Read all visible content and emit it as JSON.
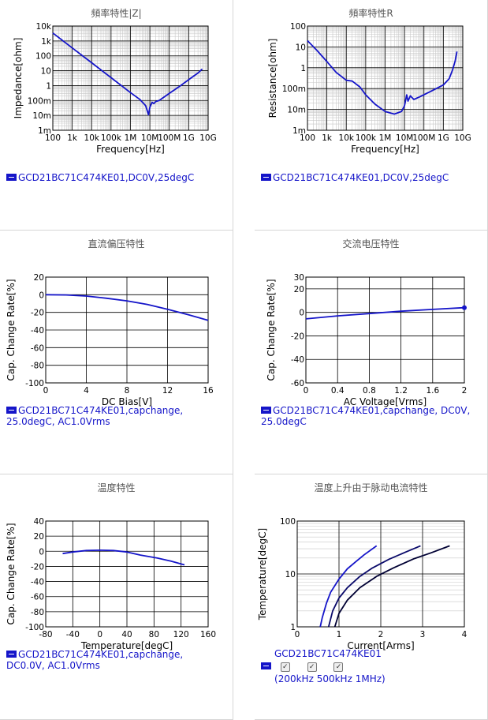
{
  "charts": [
    {
      "id": "impedance",
      "title": "頻率特性|Z|",
      "legend": "GCD21BC71C474KE01,DC0V,25degC",
      "chart_data": {
        "type": "line",
        "xlabel": "Frequency[Hz]",
        "ylabel": "Impedance[ohm]",
        "xscale": "log",
        "yscale": "log",
        "xlim": [
          100,
          10000000000
        ],
        "ylim": [
          0.001,
          10000
        ],
        "xticks": [
          100,
          1000,
          10000,
          100000,
          1000000,
          10000000,
          100000000,
          1000000000,
          10000000000
        ],
        "xtick_labels": [
          "100",
          "1k",
          "10k",
          "100k",
          "1M",
          "10M",
          "100M",
          "1G",
          "10G"
        ],
        "yticks": [
          0.001,
          0.01,
          0.1,
          1,
          10,
          100,
          1000,
          10000
        ],
        "ytick_labels": [
          "1m",
          "10m",
          "100m",
          "1",
          "10",
          "100",
          "1k",
          "10k"
        ],
        "grid": true,
        "series": [
          {
            "color": "#1515c9",
            "points": [
              [
                100,
                3400
              ],
              [
                1000,
                340
              ],
              [
                10000,
                34
              ],
              [
                100000,
                3.4
              ],
              [
                1000000,
                0.34
              ],
              [
                3000000,
                0.12
              ],
              [
                6000000,
                0.045
              ],
              [
                8500000,
                0.011
              ],
              [
                10000000,
                0.035
              ],
              [
                13000000,
                0.075
              ],
              [
                16000000,
                0.062
              ],
              [
                20000000,
                0.085
              ],
              [
                30000000,
                0.1
              ],
              [
                100000000,
                0.3
              ],
              [
                300000000,
                0.8
              ],
              [
                1000000000,
                2.5
              ],
              [
                3000000000,
                7
              ],
              [
                5000000000,
                13
              ]
            ]
          }
        ]
      }
    },
    {
      "id": "resistance",
      "title": "頻率特性R",
      "legend": "GCD21BC71C474KE01,DC0V,25degC",
      "chart_data": {
        "type": "line",
        "xlabel": "Frequency[Hz]",
        "ylabel": "Resistance[ohm]",
        "xscale": "log",
        "yscale": "log",
        "xlim": [
          100,
          10000000000
        ],
        "ylim": [
          0.001,
          100
        ],
        "xticks": [
          100,
          1000,
          10000,
          100000,
          1000000,
          10000000,
          100000000,
          1000000000,
          10000000000
        ],
        "xtick_labels": [
          "100",
          "1k",
          "10k",
          "100k",
          "1M",
          "10M",
          "100M",
          "1G",
          "10G"
        ],
        "yticks": [
          0.001,
          0.01,
          0.1,
          1,
          10,
          100
        ],
        "ytick_labels": [
          "1m",
          "10m",
          "100m",
          "1",
          "10",
          "100"
        ],
        "grid": true,
        "series": [
          {
            "color": "#1515c9",
            "points": [
              [
                100,
                20
              ],
              [
                300,
                7
              ],
              [
                1000,
                2
              ],
              [
                3000,
                0.6
              ],
              [
                10000,
                0.25
              ],
              [
                20000,
                0.23
              ],
              [
                50000,
                0.12
              ],
              [
                100000,
                0.05
              ],
              [
                300000,
                0.018
              ],
              [
                1000000,
                0.008
              ],
              [
                3000000,
                0.006
              ],
              [
                7000000,
                0.008
              ],
              [
                10000000,
                0.015
              ],
              [
                13000000,
                0.05
              ],
              [
                15000000,
                0.025
              ],
              [
                20000000,
                0.045
              ],
              [
                30000000,
                0.03
              ],
              [
                60000000,
                0.04
              ],
              [
                200000000,
                0.07
              ],
              [
                1000000000,
                0.15
              ],
              [
                2000000000,
                0.3
              ],
              [
                3000000000,
                0.8
              ],
              [
                4000000000,
                2
              ],
              [
                5000000000,
                6
              ]
            ]
          }
        ]
      }
    },
    {
      "id": "dcbias",
      "title": "直流偏压特性",
      "legend": "GCD21BC71C474KE01,capchange, 25.0degC, AC1.0Vrms",
      "chart_data": {
        "type": "line",
        "xlabel": "DC Bias[V]",
        "ylabel": "Cap. Change Rate[%]",
        "xlim": [
          0,
          16
        ],
        "ylim": [
          -100,
          20
        ],
        "xticks": [
          0,
          4,
          8,
          12,
          16
        ],
        "yticks": [
          20,
          0,
          -20,
          -40,
          -60,
          -80,
          -100
        ],
        "grid": true,
        "series": [
          {
            "color": "#1515c9",
            "points": [
              [
                0,
                0
              ],
              [
                2,
                -0.2
              ],
              [
                4,
                -1.5
              ],
              [
                6,
                -4
              ],
              [
                8,
                -7
              ],
              [
                10,
                -11
              ],
              [
                12,
                -16.5
              ],
              [
                14,
                -22.5
              ],
              [
                16,
                -29
              ]
            ]
          }
        ]
      }
    },
    {
      "id": "acvoltage",
      "title": "交流电压特性",
      "legend": "GCD21BC71C474KE01,capchange, DC0V, 25.0degC",
      "chart_data": {
        "type": "line",
        "xlabel": "AC Voltage[Vrms]",
        "ylabel": "Cap. Change Rate[%]",
        "xlim": [
          0,
          2
        ],
        "ylim": [
          -60,
          30
        ],
        "xticks": [
          0,
          0.4,
          0.8,
          1.2,
          1.6,
          2
        ],
        "yticks": [
          30,
          20,
          0,
          -20,
          -40,
          -60
        ],
        "grid": true,
        "series": [
          {
            "color": "#1515c9",
            "points": [
              [
                0,
                -5.5
              ],
              [
                0.4,
                -3
              ],
              [
                0.8,
                -1
              ],
              [
                1.0,
                0
              ],
              [
                1.2,
                1
              ],
              [
                1.6,
                2.5
              ],
              [
                2,
                4
              ]
            ]
          }
        ]
      }
    },
    {
      "id": "temperature",
      "title": "温度特性",
      "legend": "GCD21BC71C474KE01,capchange, DC0.0V, AC1.0Vrms",
      "chart_data": {
        "type": "line",
        "xlabel": "Temperature[degC]",
        "ylabel": "Cap. Change Rate[%]",
        "xlim": [
          -80,
          160
        ],
        "ylim": [
          -100,
          40
        ],
        "xticks": [
          -80,
          -40,
          0,
          40,
          80,
          120,
          160
        ],
        "yticks": [
          40,
          20,
          0,
          -20,
          -40,
          -60,
          -80,
          -100
        ],
        "grid": true,
        "series": [
          {
            "color": "#1515c9",
            "points": [
              [
                -55,
                -3
              ],
              [
                -40,
                -1
              ],
              [
                -20,
                1
              ],
              [
                0,
                1.5
              ],
              [
                20,
                1
              ],
              [
                40,
                -1
              ],
              [
                60,
                -5
              ],
              [
                85,
                -9
              ],
              [
                105,
                -13
              ],
              [
                125,
                -18
              ]
            ]
          }
        ]
      }
    },
    {
      "id": "temprise",
      "title": "温度上升由于脉动电流特性",
      "legend": "GCD21BC71C474KE01",
      "checks": [
        "200kHz",
        "500kHz",
        "1MHz"
      ],
      "chart_data": {
        "type": "line",
        "xlabel": "Current[Arms]",
        "ylabel": "Temperature[degC]",
        "yscale": "log",
        "xlim": [
          0,
          4
        ],
        "ylim": [
          1,
          100
        ],
        "xticks": [
          0,
          1,
          2,
          3,
          4
        ],
        "yticks": [
          1,
          10,
          100
        ],
        "grid": true,
        "series": [
          {
            "name": "200kHz",
            "color": "#1515c9",
            "points": [
              [
                0.55,
                1
              ],
              [
                0.6,
                1.5
              ],
              [
                0.7,
                2.8
              ],
              [
                0.8,
                4.5
              ],
              [
                1.0,
                8
              ],
              [
                1.2,
                12.5
              ],
              [
                1.4,
                17
              ],
              [
                1.6,
                23
              ],
              [
                1.9,
                34
              ]
            ]
          },
          {
            "name": "500kHz",
            "color": "#0a0a6a",
            "points": [
              [
                0.75,
                1
              ],
              [
                0.85,
                2
              ],
              [
                1.0,
                3.5
              ],
              [
                1.2,
                5.5
              ],
              [
                1.5,
                9
              ],
              [
                1.8,
                13
              ],
              [
                2.2,
                19
              ],
              [
                2.6,
                26
              ],
              [
                2.95,
                34
              ]
            ]
          },
          {
            "name": "1MHz",
            "color": "#000033",
            "points": [
              [
                0.9,
                1
              ],
              [
                1.0,
                1.8
              ],
              [
                1.2,
                3.2
              ],
              [
                1.5,
                5.5
              ],
              [
                1.9,
                9
              ],
              [
                2.3,
                13
              ],
              [
                2.8,
                19.5
              ],
              [
                3.2,
                25
              ],
              [
                3.65,
                34
              ]
            ]
          }
        ]
      }
    }
  ]
}
